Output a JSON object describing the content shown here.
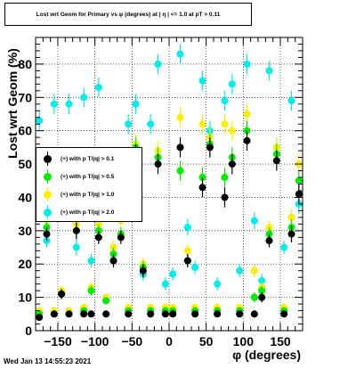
{
  "title_text": "Lost wrt Geom for Primary vs φ (degrees) at | η | <= 1.0 at pT > 0.11",
  "timestamp": "Wed Jan 13 14:55:23 2021",
  "chart_data": {
    "type": "scatter",
    "title": "Lost wrt Geom for Primary vs φ (degrees) at | η | <= 1.0 at pT > 0.11",
    "xlabel": "φ (degrees)",
    "ylabel": "Lost  wrt  Geom (%)",
    "xlim": [
      -180,
      180
    ],
    "ylim": [
      0,
      88
    ],
    "xticks": [
      -150,
      -100,
      -50,
      0,
      50,
      100,
      150
    ],
    "xtick_labels": [
      "−150",
      "−100",
      "−50",
      "0",
      "50",
      "100",
      "150"
    ],
    "yticks": [
      0,
      10,
      20,
      30,
      40,
      50,
      60,
      70,
      80
    ],
    "ytick_labels": [
      "0",
      "10",
      "20",
      "30",
      "40",
      "50",
      "60",
      "70",
      "80"
    ],
    "grid": true,
    "legend_position": "middle-left",
    "x": [
      -175,
      -165,
      -155,
      -145,
      -135,
      -125,
      -115,
      -105,
      -95,
      -85,
      -75,
      -65,
      -55,
      -45,
      -35,
      -25,
      -15,
      -5,
      5,
      15,
      25,
      35,
      45,
      55,
      65,
      75,
      85,
      95,
      105,
      115,
      125,
      135,
      145,
      155,
      165,
      175
    ],
    "series": [
      {
        "name": "(+) with p T/|q| > 0.1",
        "color": "#000000",
        "values": [
          4,
          29,
          5,
          11,
          5,
          30,
          5,
          5,
          28,
          5,
          21,
          28,
          5,
          53,
          18,
          5,
          50,
          5,
          5,
          55,
          21,
          5,
          43,
          55,
          5,
          40,
          50,
          5,
          57,
          5,
          10,
          27,
          51,
          5,
          29,
          41
        ],
        "errors": [
          1,
          2,
          1,
          1.5,
          1,
          2.5,
          1,
          1,
          2,
          1,
          2,
          2,
          1,
          3,
          2,
          1,
          3,
          1,
          1,
          3,
          2,
          1,
          3,
          3,
          1,
          3,
          3,
          1,
          3,
          1,
          1.5,
          2,
          3,
          1,
          2.5,
          3
        ]
      },
      {
        "name": "(+) with p T/|q| > 0.5",
        "color": "#00ee00",
        "values": [
          5,
          31,
          5,
          11,
          5,
          30,
          6,
          12,
          30,
          9,
          23,
          29,
          6,
          55,
          19,
          6,
          52,
          6,
          6,
          48,
          21,
          6,
          46,
          56,
          6,
          46,
          52,
          6,
          60,
          10,
          12,
          29,
          53,
          6,
          31,
          45
        ],
        "errors": [
          1,
          2,
          1,
          1.5,
          1,
          2.5,
          1,
          1.5,
          2,
          1,
          2,
          2,
          1,
          3,
          2,
          1,
          3,
          1,
          1,
          3,
          2,
          1,
          3,
          3,
          1,
          3,
          3,
          1,
          3,
          1.5,
          1.5,
          2,
          3,
          1,
          2.5,
          3
        ]
      },
      {
        "name": "(+) with p T/|q| > 1.0",
        "color": "#ffee00",
        "values": [
          6,
          33,
          6,
          12,
          6,
          32,
          7,
          13,
          32,
          10,
          25,
          33,
          7,
          56,
          20,
          7,
          54,
          7,
          7,
          64,
          24,
          7,
          62,
          58,
          7,
          62,
          60,
          7,
          65,
          18,
          13,
          31,
          55,
          7,
          34,
          50
        ],
        "errors": [
          1,
          2,
          1,
          1.5,
          1,
          2.5,
          1,
          1.5,
          2,
          1,
          2,
          2,
          1,
          3,
          2,
          1,
          3,
          1,
          1,
          3,
          2,
          1,
          3,
          3,
          1,
          3,
          3,
          1,
          3,
          2,
          1.5,
          2,
          3,
          1,
          2.5,
          3
        ]
      },
      {
        "name": "(+) with p T/|q| > 2.0",
        "color": "#00eeee",
        "values": [
          63,
          27,
          68,
          11,
          68,
          25,
          70,
          21,
          73,
          9,
          21,
          36,
          62,
          68,
          17,
          62,
          80,
          14,
          17,
          83,
          31,
          19,
          75,
          60,
          14,
          69,
          74,
          18,
          80,
          33,
          15,
          78,
          55,
          25,
          69,
          38
        ],
        "errors": [
          3,
          2,
          3,
          1.5,
          3,
          2.5,
          3,
          2,
          3,
          1,
          2,
          2.5,
          3,
          3,
          2,
          3,
          3,
          2,
          2,
          3,
          2.5,
          2,
          3,
          3,
          2,
          3,
          3,
          2,
          3,
          2.5,
          2,
          3,
          3,
          2,
          3,
          3
        ]
      }
    ]
  }
}
